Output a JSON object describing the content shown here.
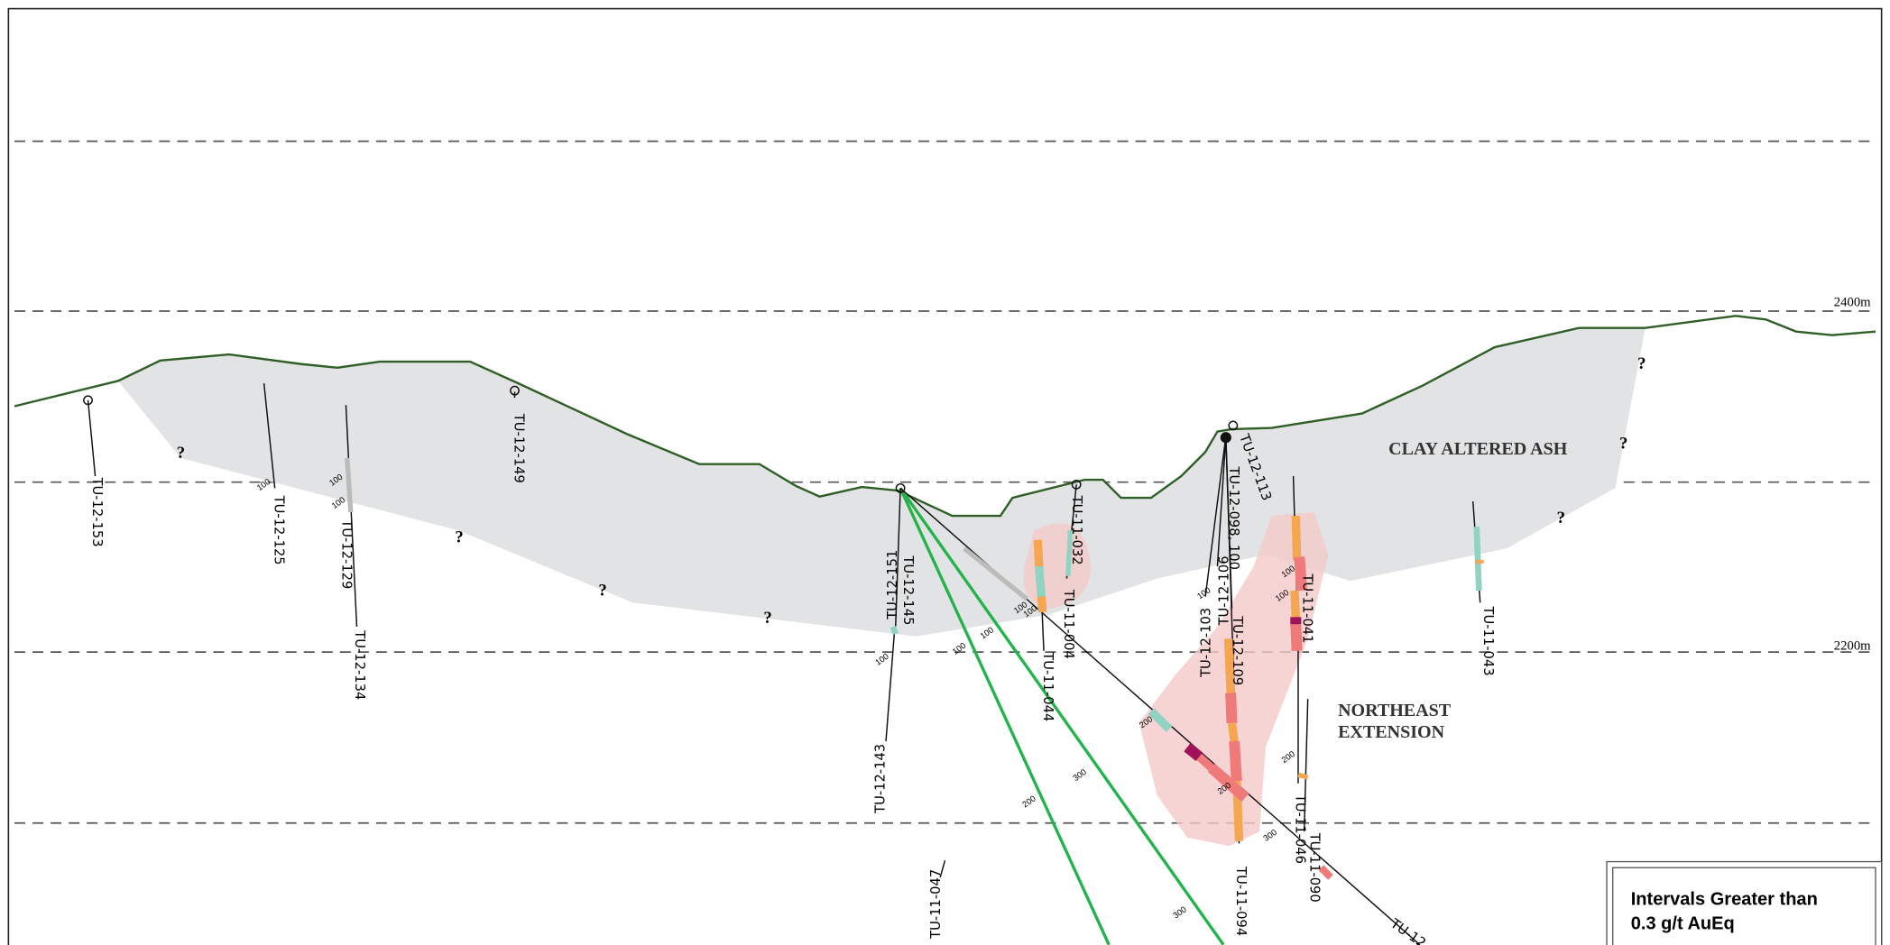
{
  "elevation_labels": [
    "2400m",
    "2200m"
  ],
  "zone_labels": [
    "CLAY ALTERED ASH",
    "NORTHEAST",
    "EXTENSION"
  ],
  "drillholes": [
    "TU-12-153",
    "TU-12-125",
    "TU-12-129",
    "TU-12-134",
    "TU-12-149",
    "TU-12-151",
    "TU-12-145",
    "TU-12-143",
    "TU-11-047",
    "TU-11-044",
    "TU-11-004",
    "TU-11-032",
    "TU-12-113",
    "TU-12-098, 100",
    "TU-12-106",
    "TU-12-103",
    "TU-12-109",
    "TU-11-041",
    "TU-11-043",
    "TU-11-094",
    "TU-11-046",
    "TU-11-090",
    "TU-12"
  ],
  "question_marks": [
    "?",
    "?",
    "?",
    "?",
    "?",
    "?",
    "?"
  ],
  "depth_labels": [
    "100",
    "100",
    "100",
    "100",
    "100",
    "100",
    "100",
    "100",
    "100",
    "100",
    "100",
    "200",
    "200",
    "200",
    "200",
    "300",
    "300",
    "300"
  ],
  "legend": {
    "title_line1": "Intervals Greater than",
    "title_line2": "0.3 g/t AuEq"
  }
}
